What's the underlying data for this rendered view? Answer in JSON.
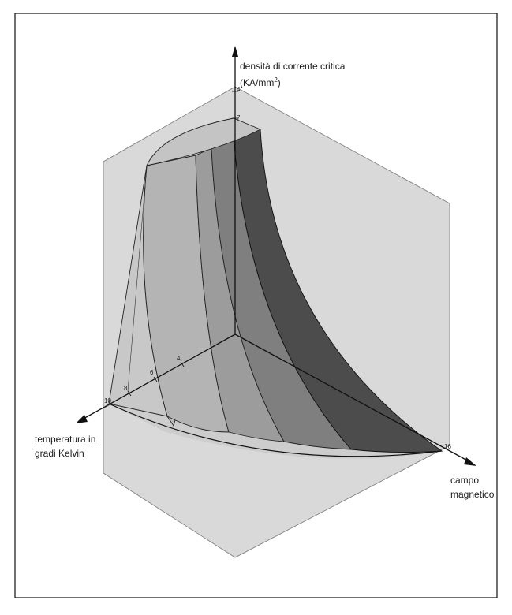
{
  "axes": {
    "vertical": {
      "label_line1": "densità di corrente critica",
      "label_prefix": "(KA/mm",
      "label_exp": "2",
      "label_suffix": ")",
      "ticks": [
        "4",
        "7"
      ]
    },
    "left": {
      "label_line1": "temperatura in",
      "label_line2": "gradi Kelvin",
      "ticks": [
        "10",
        "8",
        "6",
        "4"
      ]
    },
    "right": {
      "label_line1": "campo",
      "label_line2": "magnetico",
      "ticks": [
        "16"
      ]
    }
  },
  "colors": {
    "hexagon_fill": "#d8d8d8",
    "band_light": "#bdbdbd",
    "band_mid_light": "#a3a3a3",
    "band_mid": "#8a8a8a",
    "band_mid_dark": "#6e6e6e",
    "band_dark": "#4a4a4a",
    "floor": "#cfcfcf",
    "line": "#1a1a1a"
  }
}
